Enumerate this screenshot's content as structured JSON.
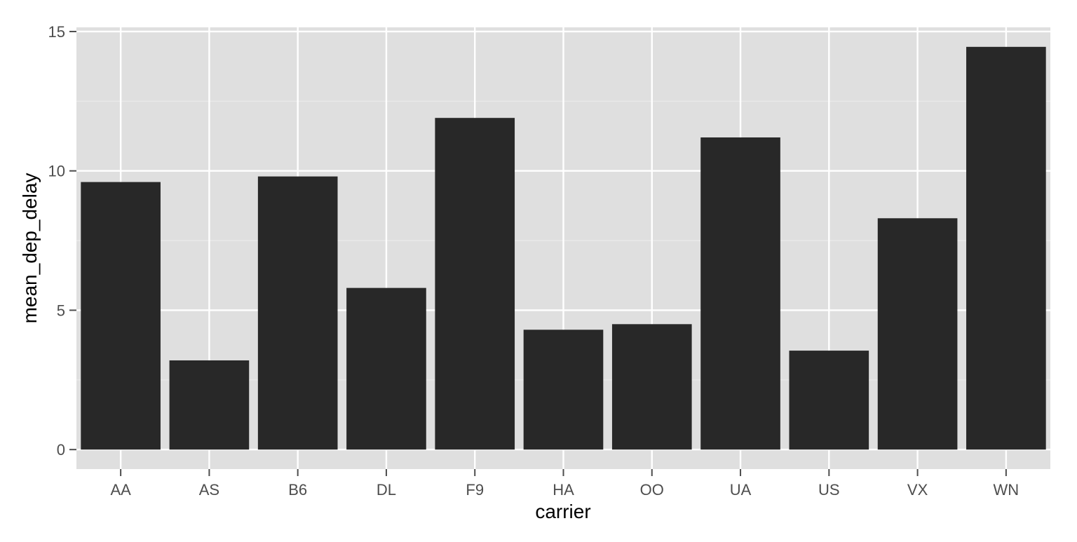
{
  "chart_data": {
    "type": "bar",
    "xlabel": "carrier",
    "ylabel": "mean_dep_delay",
    "categories": [
      "AA",
      "AS",
      "B6",
      "DL",
      "F9",
      "HA",
      "OO",
      "UA",
      "US",
      "VX",
      "WN"
    ],
    "values": [
      9.6,
      3.2,
      9.8,
      5.8,
      11.9,
      4.3,
      4.5,
      11.2,
      3.55,
      8.3,
      14.45
    ],
    "ylim": [
      -0.7,
      15.15
    ],
    "yticks": [
      0,
      5,
      10,
      15
    ],
    "ytick_labels": [
      "0",
      "5",
      "10",
      "15"
    ],
    "grid": true,
    "legend": "none",
    "colors": {
      "panel_background": "#dfdfdf",
      "grid_major": "#ffffff",
      "grid_minor": "#ececec",
      "bar_fill": "#282828",
      "tick_color": "#4d4d4d"
    }
  }
}
